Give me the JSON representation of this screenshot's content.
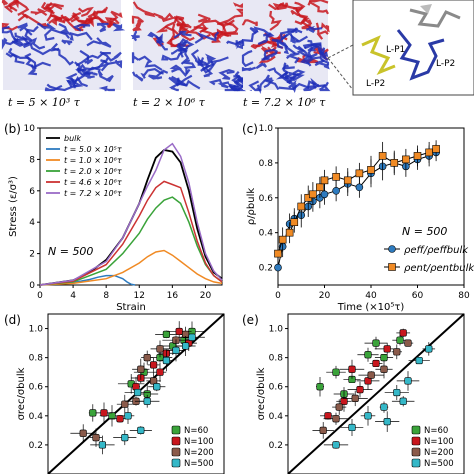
{
  "snapshots": {
    "captions": [
      "t = 5 × 10³ τ",
      "t = 2 × 10⁶ τ",
      "t = 7.2 × 10⁶ τ"
    ],
    "inset_labels": [
      "L-P1",
      "L-P2",
      "L-P2"
    ],
    "colors": {
      "top": "#c8161d",
      "bottom": "#1f2fb8",
      "chain1": "#c9c32a",
      "chain2": "#2a3aa6",
      "chain3": "#8a8a8a"
    }
  },
  "panel_labels": {
    "b": "(b)",
    "c": "(c)",
    "d": "(d)",
    "e": "(e)"
  },
  "chart_data": [
    {
      "type": "line",
      "panel": "(b)",
      "xlabel": "Strain",
      "ylabel": "Stress (ε/σ³)",
      "xlim": [
        0,
        22
      ],
      "ylim": [
        0,
        10
      ],
      "xticks": [
        0,
        4,
        8,
        12,
        16,
        20
      ],
      "yticks": [
        0,
        2,
        4,
        6,
        8,
        10
      ],
      "annotation": "N = 500",
      "legend_position": "top-left",
      "series": [
        {
          "name": "bulk",
          "color": "#000000",
          "x": [
            0,
            4,
            6,
            8,
            10,
            12,
            13,
            14,
            15,
            16,
            17,
            18,
            19,
            20,
            21,
            22
          ],
          "y": [
            0,
            0.3,
            0.8,
            1.6,
            3.0,
            5.2,
            6.7,
            8.1,
            8.6,
            8.5,
            7.8,
            6.0,
            3.6,
            1.8,
            0.8,
            0.4
          ]
        },
        {
          "name": "t = 5.0 × 10⁵τ",
          "color": "#2e7bbf",
          "x": [
            0,
            4,
            6,
            7,
            8,
            9,
            10,
            10.5,
            11,
            11.5
          ],
          "y": [
            0,
            0.15,
            0.35,
            0.5,
            0.6,
            0.6,
            0.4,
            0.2,
            0.05,
            0
          ]
        },
        {
          "name": "t = 1.0 × 10⁶τ",
          "color": "#f08a24",
          "x": [
            0,
            4,
            8,
            10,
            12,
            13,
            14,
            15,
            16,
            17,
            18,
            19,
            20,
            21,
            22
          ],
          "y": [
            0,
            0.1,
            0.4,
            0.8,
            1.4,
            1.8,
            2.1,
            2.2,
            1.9,
            1.5,
            1.1,
            0.7,
            0.4,
            0.2,
            0.1
          ]
        },
        {
          "name": "t = 2.0 × 10⁶τ",
          "color": "#3aa33a",
          "x": [
            0,
            4,
            8,
            10,
            12,
            13,
            14,
            15,
            16,
            17,
            18,
            19,
            20,
            21,
            22
          ],
          "y": [
            0,
            0.2,
            1.0,
            2.0,
            3.3,
            4.2,
            4.9,
            5.4,
            5.6,
            5.2,
            4.0,
            2.5,
            1.3,
            0.6,
            0.2
          ]
        },
        {
          "name": "t = 4.6 × 10⁶τ",
          "color": "#cc3333",
          "x": [
            0,
            4,
            8,
            10,
            12,
            13,
            14,
            15,
            16,
            17,
            18,
            19,
            20,
            21,
            22
          ],
          "y": [
            0,
            0.25,
            1.3,
            2.6,
            4.4,
            5.4,
            6.2,
            6.6,
            6.4,
            6.2,
            4.6,
            2.8,
            1.4,
            0.6,
            0.2
          ]
        },
        {
          "name": "t = 7.2 × 10⁶τ",
          "color": "#9a6cc7",
          "x": [
            0,
            4,
            8,
            10,
            12,
            13,
            14,
            15,
            16,
            17,
            18,
            19,
            20,
            21,
            22
          ],
          "y": [
            0,
            0.3,
            1.5,
            3.0,
            5.2,
            6.3,
            7.3,
            8.6,
            9.0,
            8.2,
            6.5,
            4.0,
            2.0,
            0.9,
            0.3
          ]
        }
      ]
    },
    {
      "type": "scatter",
      "panel": "(c)",
      "xlabel": "Time (×10⁵τ)",
      "ylabel": "ρ/ρbulk",
      "xlim": [
        0,
        80
      ],
      "ylim": [
        0.1,
        1.0
      ],
      "xticks": [
        0,
        20,
        40,
        60,
        80
      ],
      "yticks": [
        0.2,
        0.4,
        0.6,
        0.8,
        1.0
      ],
      "annotation": "N = 500",
      "legend_position": "bottom-right",
      "series": [
        {
          "name": "ρeff/ρeffbulk",
          "color": "#2e7bbf",
          "marker": "circle",
          "x": [
            0,
            2,
            5,
            7,
            10,
            13,
            15,
            18,
            20,
            25,
            30,
            35,
            40,
            45,
            50,
            55,
            60,
            65,
            68
          ],
          "y": [
            0.2,
            0.32,
            0.45,
            0.48,
            0.5,
            0.55,
            0.58,
            0.6,
            0.62,
            0.64,
            0.68,
            0.66,
            0.74,
            0.78,
            0.8,
            0.78,
            0.82,
            0.84,
            0.86
          ],
          "err": [
            0.05,
            0.06,
            0.06,
            0.06,
            0.07,
            0.06,
            0.06,
            0.06,
            0.06,
            0.06,
            0.07,
            0.06,
            0.08,
            0.08,
            0.07,
            0.06,
            0.06,
            0.06,
            0.05
          ]
        },
        {
          "name": "ρent/ρentbulk",
          "color": "#f08a24",
          "marker": "square",
          "x": [
            0,
            2,
            5,
            7,
            10,
            13,
            15,
            18,
            20,
            25,
            30,
            35,
            40,
            45,
            50,
            55,
            60,
            65,
            68
          ],
          "y": [
            0.28,
            0.36,
            0.4,
            0.46,
            0.55,
            0.6,
            0.62,
            0.66,
            0.7,
            0.72,
            0.7,
            0.74,
            0.76,
            0.84,
            0.8,
            0.82,
            0.84,
            0.86,
            0.88
          ],
          "err": [
            0.06,
            0.07,
            0.06,
            0.06,
            0.07,
            0.07,
            0.07,
            0.06,
            0.06,
            0.06,
            0.07,
            0.06,
            0.08,
            0.08,
            0.06,
            0.06,
            0.06,
            0.06,
            0.05
          ]
        }
      ]
    },
    {
      "type": "scatter",
      "panel": "(d)",
      "ylabel": "σrec/σbulk",
      "xlim": [
        0,
        1.1
      ],
      "ylim": [
        0.0,
        1.1
      ],
      "yticks": [
        0.2,
        0.4,
        0.6,
        0.8,
        1.0
      ],
      "diagonal": true,
      "legend_position": "bottom-right",
      "series": [
        {
          "name": "N=60",
          "color": "#3aa33a",
          "points": [
            [
              0.28,
              0.42
            ],
            [
              0.4,
              0.4
            ],
            [
              0.52,
              0.62
            ],
            [
              0.6,
              0.7
            ],
            [
              0.7,
              0.8
            ],
            [
              0.78,
              0.88
            ],
            [
              0.85,
              0.92
            ],
            [
              0.62,
              0.55
            ],
            [
              0.74,
              0.96
            ],
            [
              0.9,
              0.98
            ]
          ]
        },
        {
          "name": "N=100",
          "color": "#c8161d",
          "points": [
            [
              0.35,
              0.42
            ],
            [
              0.45,
              0.38
            ],
            [
              0.55,
              0.6
            ],
            [
              0.66,
              0.75
            ],
            [
              0.74,
              0.83
            ],
            [
              0.82,
              0.98
            ],
            [
              0.88,
              0.9
            ],
            [
              0.58,
              0.66
            ],
            [
              0.7,
              0.7
            ]
          ]
        },
        {
          "name": "N=200",
          "color": "#8a5a4a",
          "points": [
            [
              0.22,
              0.28
            ],
            [
              0.3,
              0.25
            ],
            [
              0.48,
              0.48
            ],
            [
              0.58,
              0.72
            ],
            [
              0.62,
              0.8
            ],
            [
              0.7,
              0.86
            ],
            [
              0.8,
              0.92
            ],
            [
              0.86,
              0.96
            ],
            [
              0.55,
              0.5
            ],
            [
              0.66,
              0.64
            ]
          ]
        },
        {
          "name": "N=500",
          "color": "#35b8c8",
          "points": [
            [
              0.34,
              0.2
            ],
            [
              0.48,
              0.25
            ],
            [
              0.58,
              0.3
            ],
            [
              0.62,
              0.5
            ],
            [
              0.68,
              0.6
            ],
            [
              0.74,
              0.78
            ],
            [
              0.8,
              0.85
            ],
            [
              0.86,
              0.88
            ],
            [
              0.9,
              0.94
            ],
            [
              0.5,
              0.4
            ],
            [
              0.56,
              0.56
            ]
          ]
        }
      ]
    },
    {
      "type": "scatter",
      "panel": "(e)",
      "ylabel": "σrec/σbulk",
      "xlim": [
        0,
        1.1
      ],
      "ylim": [
        0.0,
        1.1
      ],
      "yticks": [
        0.2,
        0.4,
        0.6,
        0.8,
        1.0
      ],
      "diagonal": true,
      "legend_position": "bottom-right",
      "series": [
        {
          "name": "N=60",
          "color": "#3aa33a",
          "points": [
            [
              0.2,
              0.6
            ],
            [
              0.3,
              0.7
            ],
            [
              0.4,
              0.65
            ],
            [
              0.5,
              0.82
            ],
            [
              0.6,
              0.8
            ],
            [
              0.7,
              0.92
            ],
            [
              0.35,
              0.55
            ],
            [
              0.55,
              0.9
            ]
          ]
        },
        {
          "name": "N=100",
          "color": "#c8161d",
          "points": [
            [
              0.25,
              0.4
            ],
            [
              0.35,
              0.5
            ],
            [
              0.45,
              0.58
            ],
            [
              0.55,
              0.76
            ],
            [
              0.62,
              0.86
            ],
            [
              0.72,
              0.97
            ],
            [
              0.4,
              0.72
            ],
            [
              0.5,
              0.64
            ]
          ]
        },
        {
          "name": "N=200",
          "color": "#8a5a4a",
          "points": [
            [
              0.22,
              0.3
            ],
            [
              0.32,
              0.46
            ],
            [
              0.42,
              0.52
            ],
            [
              0.52,
              0.68
            ],
            [
              0.6,
              0.72
            ],
            [
              0.68,
              0.84
            ],
            [
              0.75,
              0.9
            ],
            [
              0.3,
              0.38
            ]
          ]
        },
        {
          "name": "N=500",
          "color": "#35b8c8",
          "points": [
            [
              0.3,
              0.2
            ],
            [
              0.4,
              0.32
            ],
            [
              0.5,
              0.4
            ],
            [
              0.6,
              0.46
            ],
            [
              0.68,
              0.56
            ],
            [
              0.75,
              0.64
            ],
            [
              0.82,
              0.78
            ],
            [
              0.88,
              0.86
            ],
            [
              0.62,
              0.36
            ],
            [
              0.72,
              0.5
            ]
          ]
        }
      ]
    }
  ]
}
